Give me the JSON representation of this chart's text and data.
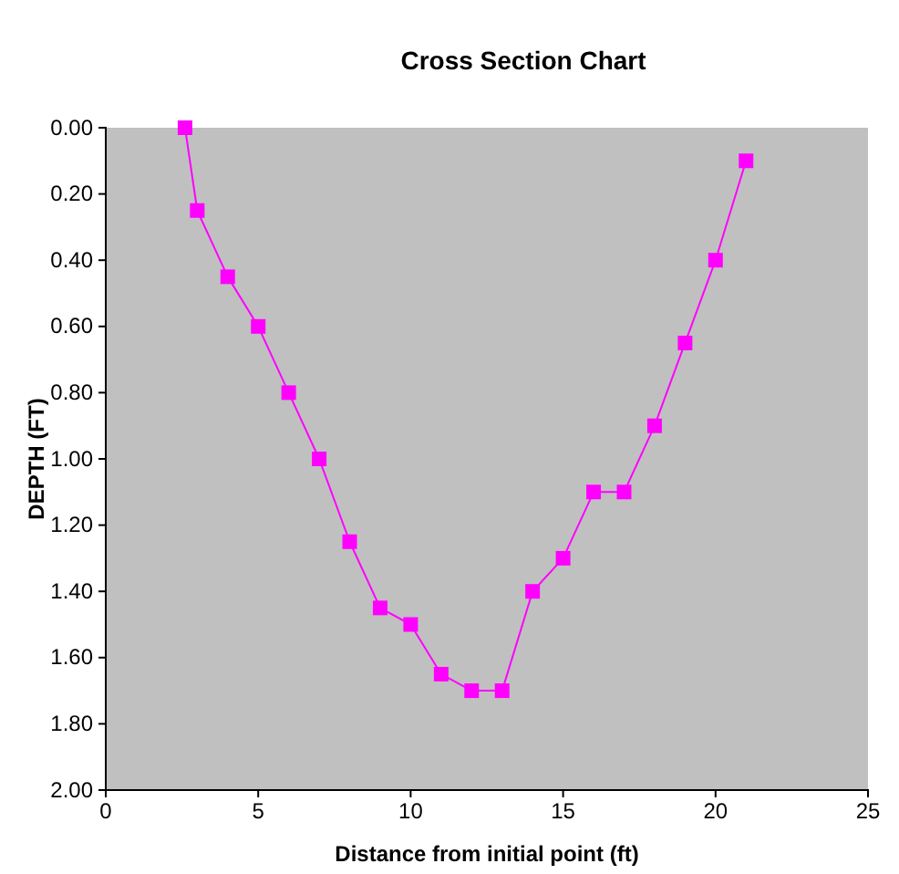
{
  "chart_data": {
    "type": "line",
    "title": "Cross Section Chart",
    "xlabel": "Distance from initial point (ft)",
    "ylabel": "DEPTH (FT)",
    "x": [
      2.6,
      3,
      4,
      5,
      6,
      7,
      8,
      9,
      10,
      11,
      12,
      13,
      14,
      15,
      16,
      17,
      18,
      19,
      20,
      21
    ],
    "series": [
      {
        "color": "#ff00ff",
        "values": [
          0,
          0.25,
          0.45,
          0.6,
          0.8,
          1.0,
          1.25,
          1.45,
          1.5,
          1.65,
          1.7,
          1.7,
          1.4,
          1.3,
          1.1,
          1.1,
          0.9,
          0.65,
          0.4,
          0.1
        ]
      }
    ],
    "xlim": [
      0,
      25
    ],
    "xticks": [
      0,
      5,
      10,
      15,
      20,
      25
    ],
    "ylim": [
      2,
      0
    ],
    "yticks": [
      {
        "value": 0,
        "label": "0.00"
      },
      {
        "value": 0.2,
        "label": "0.20"
      },
      {
        "value": 0.4,
        "label": "0.40"
      },
      {
        "value": 0.6,
        "label": "0.60"
      },
      {
        "value": 0.8,
        "label": "0.80"
      },
      {
        "value": 1,
        "label": "1.00"
      },
      {
        "value": 1.2,
        "label": "1.20"
      },
      {
        "value": 1.4,
        "label": "1.40"
      },
      {
        "value": 1.6,
        "label": "1.60"
      },
      {
        "value": 1.8,
        "label": "1.80"
      },
      {
        "value": 2,
        "label": "2.00"
      }
    ],
    "marker": "square",
    "line_style": "solid",
    "grid": false
  }
}
